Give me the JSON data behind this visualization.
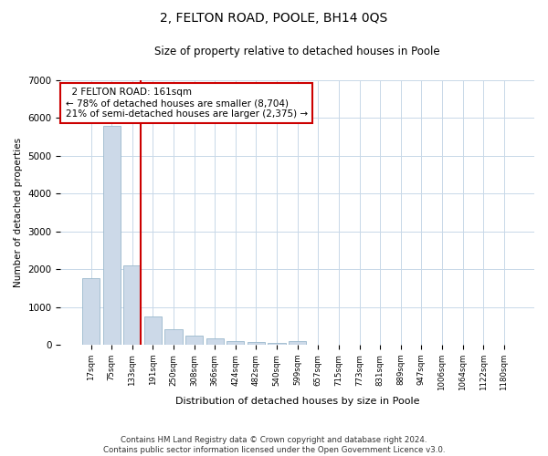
{
  "title": "2, FELTON ROAD, POOLE, BH14 0QS",
  "subtitle": "Size of property relative to detached houses in Poole",
  "xlabel": "Distribution of detached houses by size in Poole",
  "ylabel": "Number of detached properties",
  "footer_line1": "Contains HM Land Registry data © Crown copyright and database right 2024.",
  "footer_line2": "Contains public sector information licensed under the Open Government Licence v3.0.",
  "annotation_line1": "  2 FELTON ROAD: 161sqm  ",
  "annotation_line2": "← 78% of detached houses are smaller (8,704)",
  "annotation_line3": "21% of semi-detached houses are larger (2,375) →",
  "bar_color": "#ccd9e8",
  "bar_edge_color": "#9ab8cc",
  "redline_color": "#cc0000",
  "annotation_box_color": "#cc0000",
  "grid_color": "#c8d8e8",
  "bins": [
    "17sqm",
    "75sqm",
    "133sqm",
    "191sqm",
    "250sqm",
    "308sqm",
    "366sqm",
    "424sqm",
    "482sqm",
    "540sqm",
    "599sqm",
    "657sqm",
    "715sqm",
    "773sqm",
    "831sqm",
    "889sqm",
    "947sqm",
    "1006sqm",
    "1064sqm",
    "1122sqm",
    "1180sqm"
  ],
  "values": [
    1750,
    5800,
    2100,
    750,
    420,
    240,
    175,
    100,
    65,
    45,
    100,
    0,
    0,
    0,
    0,
    0,
    0,
    0,
    0,
    0,
    0
  ],
  "ylim": [
    0,
    7000
  ],
  "yticks": [
    0,
    1000,
    2000,
    3000,
    4000,
    5000,
    6000,
    7000
  ],
  "redline_x": 2.42
}
